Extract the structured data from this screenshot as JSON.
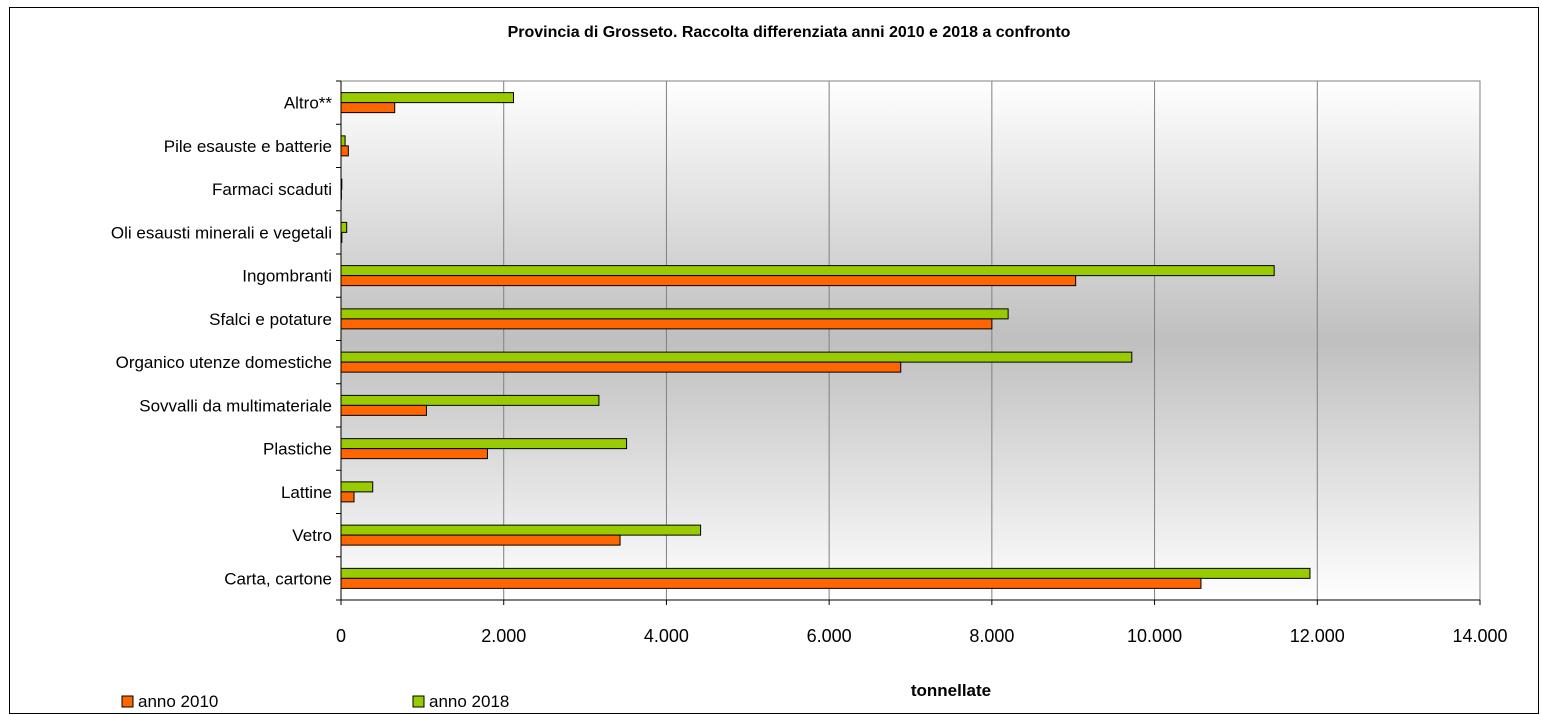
{
  "chart_data": {
    "type": "bar",
    "orientation": "horizontal",
    "title": "Provincia di Grosseto. Raccolta differenziata anni 2010 e 2018 a confronto",
    "xlabel": "tonnellate",
    "ylabel": "",
    "xlim": [
      0,
      14000
    ],
    "x_ticks": [
      0,
      2000,
      4000,
      6000,
      8000,
      10000,
      12000,
      14000
    ],
    "x_tick_labels": [
      "0",
      "2.000",
      "4.000",
      "6.000",
      "8.000",
      "10.000",
      "12.000",
      "14.000"
    ],
    "grid": "vertical",
    "legend_position": "bottom-left",
    "categories": [
      "Altro**",
      "Pile esauste e batterie",
      "Farmaci scaduti",
      "Oli esausti minerali e vegetali",
      "Ingombranti",
      "Sfalci e potature",
      "Organico utenze domestiche",
      "Sovvalli da multimateriale",
      "Plastiche",
      "Lattine",
      "Vetro",
      "Carta, cartone"
    ],
    "series": [
      {
        "name": "anno 2010",
        "color": "#FF6600",
        "values": [
          660,
          90,
          5,
          10,
          9030,
          8000,
          6880,
          1050,
          1800,
          160,
          3430,
          10570
        ]
      },
      {
        "name": "anno 2018",
        "color": "#99CC00",
        "values": [
          2120,
          50,
          10,
          70,
          11470,
          8200,
          9720,
          3170,
          3510,
          390,
          4420,
          11910
        ]
      }
    ]
  }
}
